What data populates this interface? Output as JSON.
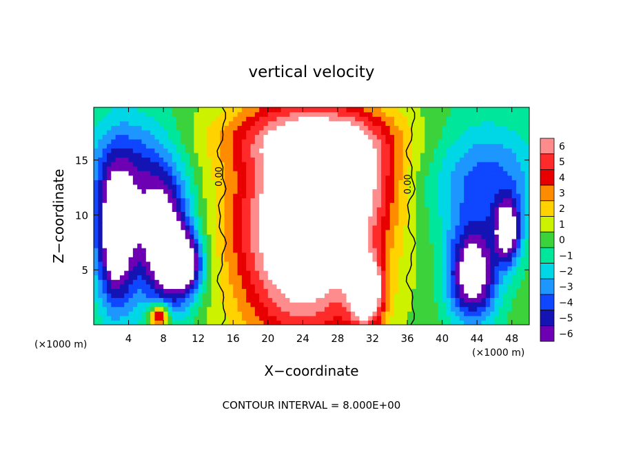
{
  "chart_data": {
    "type": "heatmap",
    "title": "vertical velocity",
    "xlabel": "X−coordinate",
    "ylabel": "Z−coordinate",
    "x_unit_left": "(×1000 m)",
    "x_unit_right": "(×1000 m)",
    "xlim": [
      0,
      50
    ],
    "ylim": [
      0,
      19.8
    ],
    "xticks": [
      4,
      8,
      12,
      16,
      20,
      24,
      28,
      32,
      36,
      40,
      44,
      48
    ],
    "xtick_labels": [
      "4",
      "8",
      "12",
      "16",
      "20",
      "24",
      "28",
      "32",
      "36",
      "40",
      "44",
      "48"
    ],
    "yticks": [
      5,
      10,
      15
    ],
    "ytick_labels": [
      "5",
      "10",
      "15"
    ],
    "colorbar": {
      "levels": [
        6,
        5,
        4,
        3,
        2,
        1,
        0,
        -1,
        -2,
        -3,
        -4,
        -5,
        -6
      ],
      "labels": [
        "6",
        "5",
        "4",
        "3",
        "2",
        "1",
        "0",
        "−1",
        "−2",
        "−3",
        "−4",
        "−5",
        "−6"
      ],
      "colors": [
        "#ff8c8c",
        "#ff2a2a",
        "#e80000",
        "#ff8c00",
        "#ffd200",
        "#ccf200",
        "#3cd23c",
        "#00e69a",
        "#00d7e6",
        "#1e96ff",
        "#0f46ff",
        "#1414b4",
        "#6e00b4"
      ]
    },
    "contour_labels": [
      {
        "x": 14.7,
        "z": 13.5,
        "text": "0.00"
      },
      {
        "x": 36.4,
        "z": 12.8,
        "text": "0.00"
      }
    ],
    "contour_interval_text": "CONTOUR INTERVAL = 8.000E+00",
    "updrafts": [
      {
        "x": 24.0,
        "z": 9.0,
        "sx": 5.5,
        "sz": 7.5,
        "amp": 10
      },
      {
        "x": 30.5,
        "z": 13.0,
        "sx": 3.5,
        "sz": 4.0,
        "amp": 4
      },
      {
        "x": 31.3,
        "z": 3.0,
        "sx": 1.4,
        "sz": 2.2,
        "amp": 8
      },
      {
        "x": 7.5,
        "z": 0.8,
        "sx": 0.8,
        "sz": 0.8,
        "amp": 7
      },
      {
        "x": 25.0,
        "z": 17.0,
        "sx": 8.0,
        "sz": 2.0,
        "amp": 3
      }
    ],
    "downdrafts": [
      {
        "x": 2.5,
        "z": 7.5,
        "sx": 1.6,
        "sz": 4.5,
        "amp": -8
      },
      {
        "x": 8.0,
        "z": 7.5,
        "sx": 2.2,
        "sz": 4.5,
        "amp": -8
      },
      {
        "x": 10.5,
        "z": 5.5,
        "sx": 1.5,
        "sz": 2.0,
        "amp": -7
      },
      {
        "x": 43.5,
        "z": 4.5,
        "sx": 2.0,
        "sz": 3.0,
        "amp": -8
      },
      {
        "x": 47.5,
        "z": 8.5,
        "sx": 1.0,
        "sz": 2.0,
        "amp": -7
      },
      {
        "x": 4.0,
        "z": 14.0,
        "sx": 3.5,
        "sz": 4.0,
        "amp": -4
      },
      {
        "x": 45.0,
        "z": 13.0,
        "sx": 4.5,
        "sz": 4.0,
        "amp": -4
      }
    ]
  }
}
